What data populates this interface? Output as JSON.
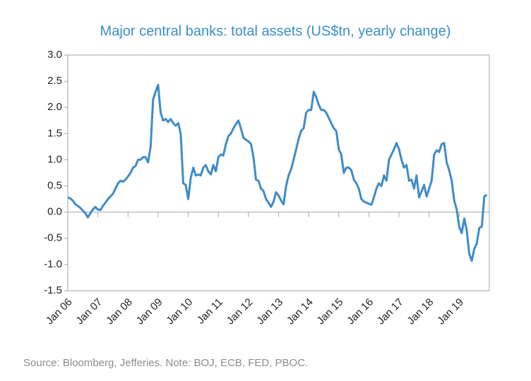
{
  "chart_data": {
    "type": "line",
    "title": "Major central banks: total assets (US$tn, yearly change)",
    "source": "Source: Bloomberg, Jefferies. Note: BOJ, ECB, FED, PBOC.",
    "categories": [
      "Jan 06",
      null,
      null,
      null,
      null,
      null,
      null,
      null,
      null,
      null,
      null,
      null,
      "Jan 07",
      null,
      null,
      null,
      null,
      null,
      null,
      null,
      null,
      null,
      null,
      null,
      "Jan 08",
      null,
      null,
      null,
      null,
      null,
      null,
      null,
      null,
      null,
      null,
      null,
      "Jan 09",
      null,
      null,
      null,
      null,
      null,
      null,
      null,
      null,
      null,
      null,
      null,
      "Jan 10",
      null,
      null,
      null,
      null,
      null,
      null,
      null,
      null,
      null,
      null,
      null,
      "Jan 11",
      null,
      null,
      null,
      null,
      null,
      null,
      null,
      null,
      null,
      null,
      null,
      "Jan 12",
      null,
      null,
      null,
      null,
      null,
      null,
      null,
      null,
      null,
      null,
      null,
      "Jan 13",
      null,
      null,
      null,
      null,
      null,
      null,
      null,
      null,
      null,
      null,
      null,
      "Jan 14",
      null,
      null,
      null,
      null,
      null,
      null,
      null,
      null,
      null,
      null,
      null,
      "Jan 15",
      null,
      null,
      null,
      null,
      null,
      null,
      null,
      null,
      null,
      null,
      null,
      "Jan 16",
      null,
      null,
      null,
      null,
      null,
      null,
      null,
      null,
      null,
      null,
      null,
      "Jan 17",
      null,
      null,
      null,
      null,
      null,
      null,
      null,
      null,
      null,
      null,
      null,
      "Jan 18",
      null,
      null,
      null,
      null,
      null,
      null,
      null,
      null,
      null,
      null,
      null,
      "Jan 19",
      null,
      null,
      null,
      null,
      null,
      null,
      null,
      null,
      null,
      null,
      null
    ],
    "series": [
      {
        "name": "Total assets yearly change",
        "color": "#3f8bc9",
        "values": [
          0.28,
          0.26,
          0.22,
          0.15,
          0.12,
          0.08,
          0.03,
          -0.02,
          -0.1,
          -0.02,
          0.05,
          0.1,
          0.05,
          0.04,
          0.12,
          0.18,
          0.25,
          0.3,
          0.35,
          0.45,
          0.55,
          0.6,
          0.58,
          0.62,
          0.68,
          0.75,
          0.85,
          0.88,
          1.0,
          1.0,
          1.05,
          1.05,
          0.95,
          1.25,
          2.15,
          2.3,
          2.43,
          1.9,
          1.75,
          1.78,
          1.72,
          1.78,
          1.7,
          1.65,
          1.7,
          1.5,
          0.55,
          0.52,
          0.25,
          0.65,
          0.85,
          0.7,
          0.72,
          0.7,
          0.85,
          0.9,
          0.78,
          0.72,
          0.9,
          0.78,
          1.05,
          1.1,
          1.08,
          1.3,
          1.45,
          1.5,
          1.6,
          1.68,
          1.75,
          1.6,
          1.42,
          1.38,
          1.35,
          1.3,
          1.05,
          0.62,
          0.6,
          0.45,
          0.4,
          0.25,
          0.18,
          0.1,
          0.2,
          0.38,
          0.32,
          0.22,
          0.15,
          0.5,
          0.7,
          0.82,
          1.0,
          1.2,
          1.4,
          1.55,
          1.6,
          1.9,
          1.95,
          1.95,
          2.3,
          2.2,
          2.05,
          1.95,
          1.95,
          1.9,
          1.8,
          1.7,
          1.6,
          1.55,
          1.2,
          1.1,
          0.75,
          0.85,
          0.85,
          0.8,
          0.62,
          0.55,
          0.45,
          0.25,
          0.2,
          0.18,
          0.16,
          0.14,
          0.28,
          0.45,
          0.55,
          0.5,
          0.7,
          0.6,
          1.0,
          1.1,
          1.2,
          1.32,
          1.2,
          1.0,
          0.85,
          0.9,
          0.6,
          0.62,
          0.45,
          0.7,
          0.28,
          0.4,
          0.52,
          0.3,
          0.45,
          0.6,
          1.1,
          1.18,
          1.15,
          1.3,
          1.32,
          0.95,
          0.8,
          0.6,
          0.22,
          0.05,
          -0.28,
          -0.4,
          -0.12,
          -0.35,
          -0.8,
          -0.93,
          -0.7,
          -0.6,
          -0.3,
          -0.28,
          0.3,
          0.33
        ]
      }
    ],
    "ylim": [
      -1.5,
      3.0
    ],
    "yticks": [
      {
        "value": -1.5,
        "label": "-1.5"
      },
      {
        "value": -1.0,
        "label": "-1.0"
      },
      {
        "value": -0.5,
        "label": "-0.5"
      },
      {
        "value": 0.0,
        "label": "0.0"
      },
      {
        "value": 0.5,
        "label": "0.5"
      },
      {
        "value": 1.0,
        "label": "1.0"
      },
      {
        "value": 1.5,
        "label": "1.5"
      },
      {
        "value": 2.0,
        "label": "2.0"
      },
      {
        "value": 2.5,
        "label": "2.5"
      },
      {
        "value": 3.0,
        "label": "3.0"
      }
    ],
    "grid": false
  }
}
